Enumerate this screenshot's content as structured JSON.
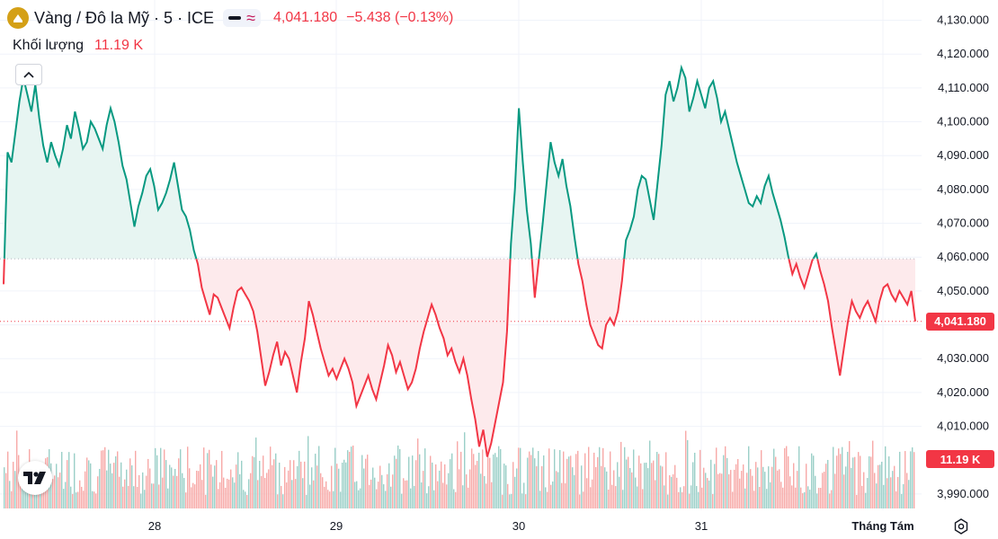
{
  "legend": {
    "symbol": "Vàng / Đô la Mỹ · 5 · ICE",
    "last": "4,041.180",
    "change": "−5.438 (−0.13%)",
    "volume_label": "Khối lượng",
    "volume_value": "11.19 K"
  },
  "colors": {
    "up": "#089981",
    "down": "#f23645",
    "up_fill": "#e7f5f2",
    "down_fill": "#fdeaec",
    "vol_up": "#9bcfc8",
    "vol_down": "#f7a9a7",
    "logo": "#d4a017"
  },
  "icons": [
    "gold-coin-icon",
    "line-style-icon",
    "wave-icon",
    "chevron-up-icon",
    "tradingview-logo-icon",
    "settings-icon"
  ],
  "price_label": "4,041.180",
  "volume_label": "11.19 K",
  "chart_data": {
    "type": "line",
    "baseline": 4059.5,
    "ylim": [
      3986,
      4132
    ],
    "ytick_values": [
      3990,
      4010,
      4020,
      4030,
      4040,
      4050,
      4060,
      4070,
      4080,
      4090,
      4100,
      4110,
      4120,
      4130
    ],
    "yticks": [
      "3,990.000",
      "4,010.000",
      "4,020.000",
      "4,030.000",
      "4,040.000",
      "4,050.000",
      "4,060.000",
      "4,070.000",
      "4,080.000",
      "4,090.000",
      "4,100.000",
      "4,110.000",
      "4,120.000",
      "4,130.000"
    ],
    "xticks": [
      "28",
      "29",
      "30",
      "31",
      "Tháng Tám"
    ],
    "series": [
      {
        "values": [
          4052,
          4091,
          4088,
          4097,
          4106,
          4113,
          4108,
          4103,
          4111,
          4101,
          4093,
          4088,
          4094,
          4090,
          4087,
          4092,
          4099,
          4095,
          4103,
          4098,
          4092,
          4094,
          4100,
          4098,
          4095,
          4092,
          4099,
          4104,
          4100,
          4094,
          4087,
          4083,
          4076,
          4069,
          4075,
          4079,
          4084,
          4086,
          4081,
          4074,
          4076,
          4079,
          4083,
          4088,
          4081,
          4074,
          4072,
          4068,
          4062,
          4058,
          4051,
          4047,
          4043,
          4049,
          4048,
          4045,
          4042,
          4039,
          4045,
          4050,
          4051,
          4049,
          4047,
          4044,
          4038,
          4030,
          4022,
          4026,
          4031,
          4035,
          4028,
          4032,
          4030,
          4025,
          4020,
          4029,
          4036,
          4047,
          4043,
          4038,
          4033,
          4029,
          4025,
          4027,
          4024,
          4027,
          4030,
          4027,
          4023,
          4016,
          4019,
          4022,
          4025,
          4021,
          4018,
          4023,
          4028,
          4034,
          4031,
          4026,
          4029,
          4025,
          4021,
          4023,
          4027,
          4033,
          4038,
          4042,
          4046,
          4043,
          4039,
          4036,
          4031,
          4033,
          4029,
          4026,
          4030,
          4025,
          4018,
          4012,
          4004,
          4009,
          4001,
          4005,
          4011,
          4017,
          4023,
          4038,
          4064,
          4080,
          4104,
          4088,
          4074,
          4064,
          4048,
          4059,
          4070,
          4082,
          4094,
          4088,
          4084,
          4089,
          4081,
          4075,
          4066,
          4058,
          4053,
          4046,
          4040,
          4037,
          4034,
          4033,
          4040,
          4042,
          4040,
          4044,
          4053,
          4065,
          4068,
          4072,
          4080,
          4084,
          4083,
          4077,
          4071,
          4082,
          4093,
          4108,
          4112,
          4106,
          4110,
          4116,
          4113,
          4103,
          4107,
          4112,
          4108,
          4104,
          4110,
          4112,
          4107,
          4100,
          4103,
          4098,
          4093,
          4088,
          4084,
          4080,
          4076,
          4075,
          4078,
          4076,
          4081,
          4084,
          4079,
          4075,
          4071,
          4066,
          4060,
          4055,
          4058,
          4054,
          4051,
          4055,
          4059,
          4061,
          4056,
          4052,
          4047,
          4039,
          4032,
          4025,
          4033,
          4041,
          4047,
          4044,
          4042,
          4045,
          4047,
          4044,
          4041,
          4047,
          4051,
          4052,
          4049,
          4047,
          4050,
          4048,
          4046,
          4050,
          4041
        ]
      }
    ]
  }
}
